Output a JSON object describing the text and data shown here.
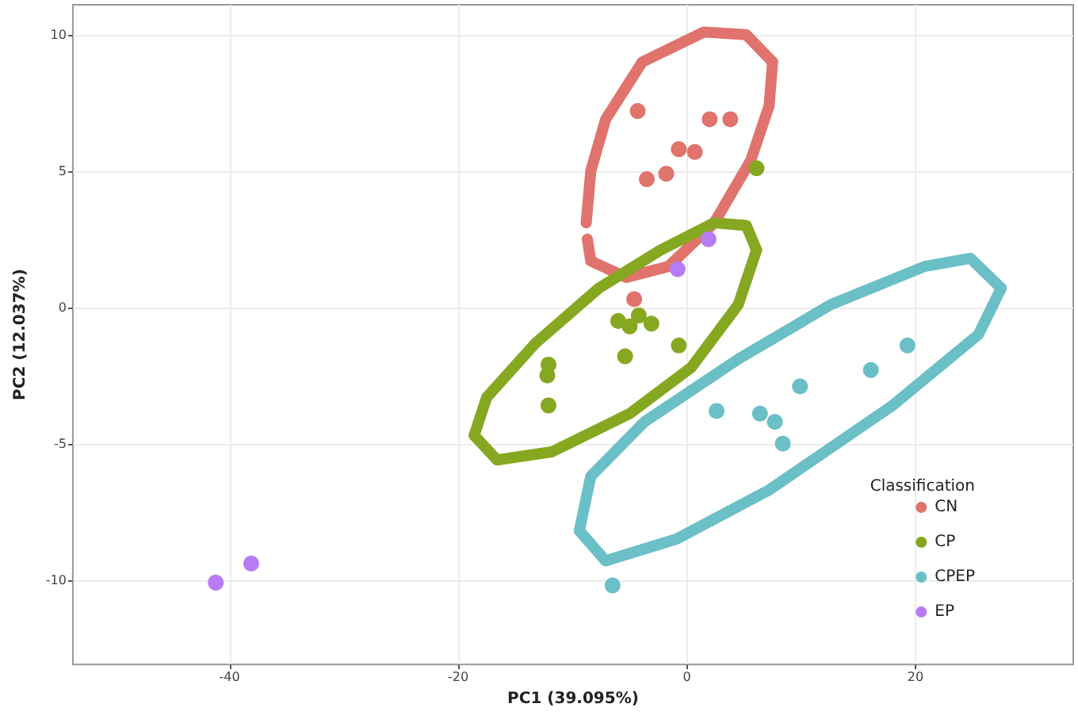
{
  "chart_data": {
    "type": "scatter",
    "xlabel": "PC1 (39.095%)",
    "ylabel": "PC2 (12.037%)",
    "legend_title": "Classification",
    "legend": "bottom right",
    "grid": true,
    "marker": "circle",
    "xlim": [
      -53.7,
      33.8
    ],
    "ylim": [
      -13.1,
      11.1
    ],
    "xticks": [
      -40,
      -20,
      0,
      20
    ],
    "yticks": [
      -10,
      -5,
      0,
      5,
      10
    ],
    "series": [
      {
        "name": "CN",
        "color": "#e0736c",
        "x": [
          -4.3,
          2.0,
          3.8,
          -0.7,
          0.7,
          -3.5,
          -1.8,
          -4.6
        ],
        "values": [
          7.2,
          6.9,
          6.9,
          5.8,
          5.7,
          4.7,
          4.9,
          0.3
        ]
      },
      {
        "name": "CP",
        "color": "#86a820",
        "x": [
          6.1,
          -6.0,
          -5.0,
          -4.2,
          -3.1,
          -5.4,
          -0.7,
          -12.1,
          -12.2,
          -12.1
        ],
        "values": [
          5.1,
          -0.5,
          -0.7,
          -0.3,
          -0.6,
          -1.8,
          -1.4,
          -2.1,
          -2.5,
          -3.6
        ]
      },
      {
        "name": "CPEP",
        "color": "#6bbfc6",
        "x": [
          19.3,
          16.1,
          9.9,
          2.6,
          6.4,
          7.7,
          8.4,
          -6.5
        ],
        "values": [
          -1.4,
          -2.3,
          -2.9,
          -3.8,
          -3.9,
          -4.2,
          -5.0,
          -10.2
        ]
      },
      {
        "name": "EP",
        "color": "#b77cf5",
        "x": [
          1.9,
          -0.8,
          -41.2,
          -38.1
        ],
        "values": [
          2.5,
          1.4,
          -10.1,
          -9.4
        ]
      },
      {
        "type": "line",
        "marker": "none",
        "color": "#e0736c",
        "x": [
          -8.8,
          -8.4,
          -7.1,
          -3.9,
          1.5,
          5.2,
          7.5
        ],
        "values": [
          3.1,
          5.0,
          6.9,
          9.0,
          10.1,
          10.0,
          9.0
        ]
      },
      {
        "type": "line",
        "marker": "none",
        "color": "#e0736c",
        "x": [
          -8.7,
          -8.4,
          -5.3,
          -1.6,
          2.4,
          5.6,
          7.2,
          7.5
        ],
        "values": [
          2.5,
          1.7,
          1.1,
          1.5,
          3.1,
          5.4,
          7.4,
          9.0
        ]
      },
      {
        "type": "line",
        "marker": "none",
        "color": "#86a820",
        "x": [
          -18.6,
          -17.5,
          -13.2,
          -7.7,
          -2.3,
          2.4,
          5.2,
          6.1
        ],
        "values": [
          -4.7,
          -3.3,
          -1.3,
          0.7,
          2.1,
          3.1,
          3.0,
          2.1
        ]
      },
      {
        "type": "line",
        "marker": "none",
        "color": "#86a820",
        "x": [
          -18.6,
          -16.6,
          -11.8,
          -5.0,
          0.4,
          4.5,
          6.1
        ],
        "values": [
          -4.7,
          -5.6,
          -5.3,
          -3.9,
          -2.2,
          0.1,
          2.1
        ]
      },
      {
        "type": "line",
        "marker": "none",
        "color": "#6bbfc6",
        "x": [
          -9.4,
          -8.4,
          -3.7,
          4.5,
          12.6,
          20.8,
          24.8,
          27.5
        ],
        "values": [
          -8.2,
          -6.2,
          -4.2,
          -1.9,
          0.1,
          1.5,
          1.8,
          0.7
        ]
      },
      {
        "type": "line",
        "marker": "none",
        "color": "#6bbfc6",
        "x": [
          -9.4,
          -7.1,
          -0.9,
          7.2,
          18.0,
          25.5,
          27.5
        ],
        "values": [
          -8.2,
          -9.3,
          -8.5,
          -6.7,
          -3.6,
          -1.0,
          0.7
        ]
      }
    ]
  }
}
